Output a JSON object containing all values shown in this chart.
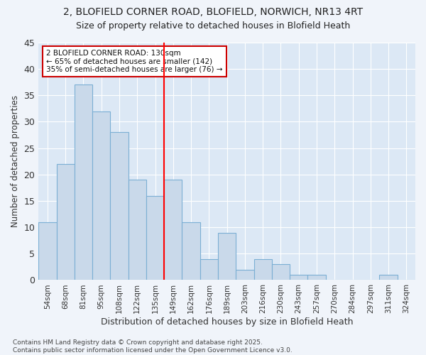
{
  "title_line1": "2, BLOFIELD CORNER ROAD, BLOFIELD, NORWICH, NR13 4RT",
  "title_line2": "Size of property relative to detached houses in Blofield Heath",
  "xlabel": "Distribution of detached houses by size in Blofield Heath",
  "ylabel": "Number of detached properties",
  "categories": [
    "54sqm",
    "68sqm",
    "81sqm",
    "95sqm",
    "108sqm",
    "122sqm",
    "135sqm",
    "149sqm",
    "162sqm",
    "176sqm",
    "189sqm",
    "203sqm",
    "216sqm",
    "230sqm",
    "243sqm",
    "257sqm",
    "270sqm",
    "284sqm",
    "297sqm",
    "311sqm",
    "324sqm"
  ],
  "values": [
    11,
    22,
    37,
    32,
    28,
    19,
    16,
    19,
    11,
    4,
    9,
    2,
    4,
    3,
    1,
    1,
    0,
    0,
    0,
    1,
    0
  ],
  "bar_color": "#c9d9ea",
  "bar_edge_color": "#7bafd4",
  "vline_x": 6.5,
  "vline_color": "red",
  "ylim": [
    0,
    45
  ],
  "yticks": [
    0,
    5,
    10,
    15,
    20,
    25,
    30,
    35,
    40,
    45
  ],
  "annotation_text": "2 BLOFIELD CORNER ROAD: 130sqm\n← 65% of detached houses are smaller (142)\n35% of semi-detached houses are larger (76) →",
  "annotation_box_facecolor": "white",
  "annotation_box_edgecolor": "#cc0000",
  "fig_bg_color": "#f0f4fa",
  "plot_bg_color": "#dce8f5",
  "grid_color": "white",
  "footer": "Contains HM Land Registry data © Crown copyright and database right 2025.\nContains public sector information licensed under the Open Government Licence v3.0."
}
